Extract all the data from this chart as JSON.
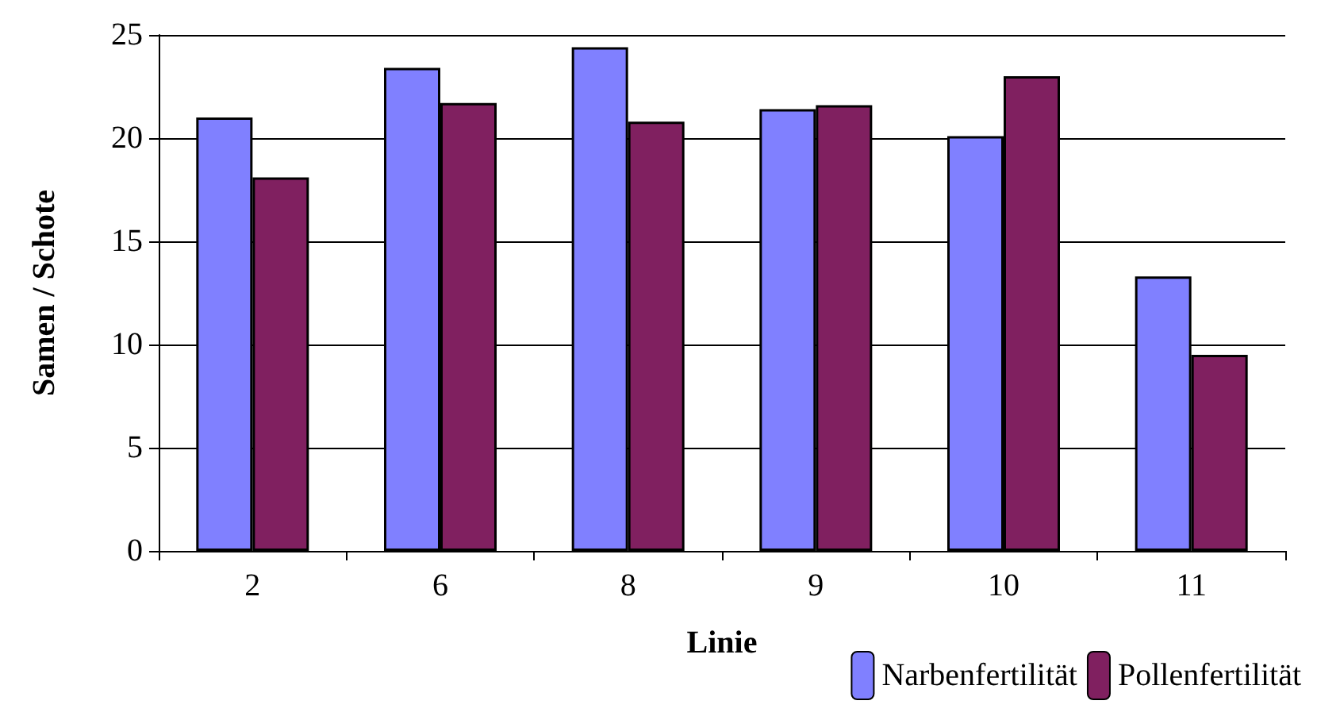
{
  "chart_data": {
    "type": "bar",
    "xlabel": "Linie",
    "ylabel": "Samen / Schote",
    "categories": [
      "2",
      "6",
      "8",
      "9",
      "10",
      "11"
    ],
    "series": [
      {
        "name": "Narbenfertilität",
        "color": "#8080ff",
        "values": [
          21.0,
          23.4,
          24.4,
          21.4,
          20.1,
          13.3
        ]
      },
      {
        "name": "Pollenfertilität",
        "color": "#802060",
        "values": [
          18.1,
          21.7,
          20.8,
          21.6,
          23.0,
          9.5
        ]
      }
    ],
    "ylim": [
      0,
      25
    ],
    "yticks": [
      0,
      5,
      10,
      15,
      20,
      25
    ],
    "grid": "y",
    "legend": "bottom right"
  }
}
